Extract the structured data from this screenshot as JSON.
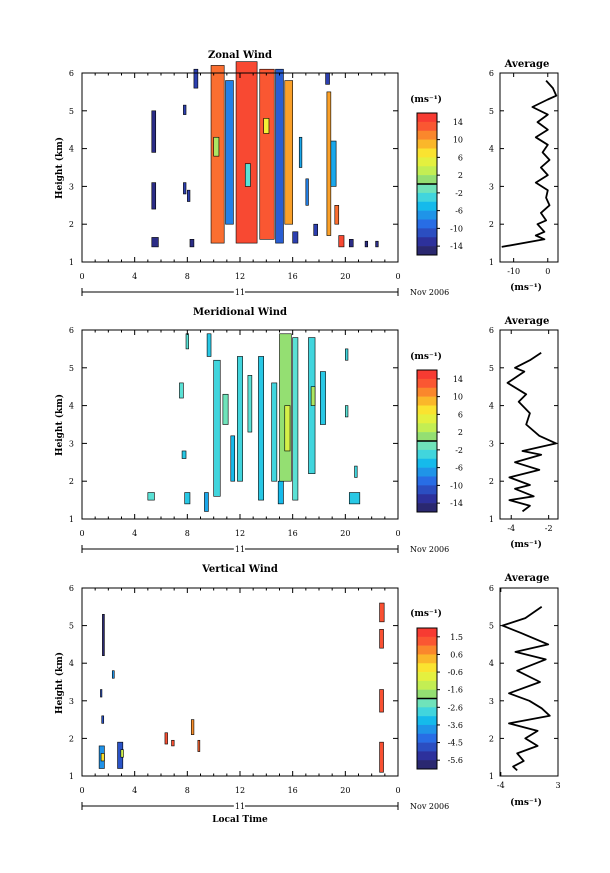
{
  "figure": {
    "time_axis_label": "Local Time",
    "date_label": "Nov 2006",
    "day_label": "11",
    "height_label": "Height (km)",
    "average_title": "Average"
  },
  "chart_data": [
    {
      "type": "heatmap",
      "title": "Zonal Wind",
      "xlabel": "Local Time",
      "ylabel": "Height (km)",
      "x_ticks": [
        "0",
        "4",
        "8",
        "12",
        "16",
        "20",
        "0"
      ],
      "y_ticks": [
        "1",
        "2",
        "3",
        "4",
        "5",
        "6"
      ],
      "xlim": [
        0,
        24
      ],
      "ylim": [
        1,
        6
      ],
      "colorbar": {
        "unit": "(ms⁻¹)",
        "ticks": [
          "14",
          "10",
          "6",
          "2",
          "-2",
          "-6",
          "-10",
          "-14"
        ],
        "range": [
          -16,
          16
        ]
      },
      "cells": [
        {
          "x": 5.3,
          "y": 3.9,
          "w": 0.3,
          "h": 1.1,
          "v": -14
        },
        {
          "x": 5.3,
          "y": 2.4,
          "w": 0.3,
          "h": 0.7,
          "v": -14
        },
        {
          "x": 5.3,
          "y": 1.4,
          "w": 0.5,
          "h": 0.25,
          "v": -14
        },
        {
          "x": 7.7,
          "y": 4.9,
          "w": 0.2,
          "h": 0.25,
          "v": -12
        },
        {
          "x": 7.7,
          "y": 2.8,
          "w": 0.2,
          "h": 0.3,
          "v": -12
        },
        {
          "x": 8.0,
          "y": 2.6,
          "w": 0.2,
          "h": 0.3,
          "v": -12
        },
        {
          "x": 8.2,
          "y": 1.4,
          "w": 0.3,
          "h": 0.2,
          "v": -14
        },
        {
          "x": 8.5,
          "y": 5.6,
          "w": 0.3,
          "h": 0.5,
          "v": -12
        },
        {
          "x": 9.8,
          "y": 1.5,
          "w": 1.0,
          "h": 4.7,
          "v": 12
        },
        {
          "x": 10.0,
          "y": 3.8,
          "w": 0.4,
          "h": 0.5,
          "v": 2
        },
        {
          "x": 10.9,
          "y": 2.0,
          "w": 0.6,
          "h": 3.8,
          "v": -8
        },
        {
          "x": 11.7,
          "y": 1.5,
          "w": 1.6,
          "h": 4.8,
          "v": 14
        },
        {
          "x": 12.4,
          "y": 3.0,
          "w": 0.4,
          "h": 0.6,
          "v": -2
        },
        {
          "x": 13.5,
          "y": 1.6,
          "w": 1.1,
          "h": 4.5,
          "v": 13
        },
        {
          "x": 13.8,
          "y": 4.4,
          "w": 0.4,
          "h": 0.4,
          "v": 6
        },
        {
          "x": 14.7,
          "y": 1.5,
          "w": 0.6,
          "h": 4.6,
          "v": -10
        },
        {
          "x": 15.4,
          "y": 2.0,
          "w": 0.6,
          "h": 3.8,
          "v": 10
        },
        {
          "x": 16.0,
          "y": 1.5,
          "w": 0.4,
          "h": 0.3,
          "v": -12
        },
        {
          "x": 16.5,
          "y": 3.5,
          "w": 0.2,
          "h": 0.8,
          "v": -6
        },
        {
          "x": 17.0,
          "y": 2.5,
          "w": 0.2,
          "h": 0.7,
          "v": -8
        },
        {
          "x": 17.6,
          "y": 1.7,
          "w": 0.3,
          "h": 0.3,
          "v": -12
        },
        {
          "x": 18.5,
          "y": 5.7,
          "w": 0.3,
          "h": 0.3,
          "v": -12
        },
        {
          "x": 18.6,
          "y": 1.7,
          "w": 0.3,
          "h": 3.8,
          "v": 10
        },
        {
          "x": 18.9,
          "y": 3.0,
          "w": 0.4,
          "h": 1.2,
          "v": -6
        },
        {
          "x": 19.2,
          "y": 2.0,
          "w": 0.3,
          "h": 0.5,
          "v": 12
        },
        {
          "x": 19.5,
          "y": 1.4,
          "w": 0.4,
          "h": 0.3,
          "v": 14
        },
        {
          "x": 20.3,
          "y": 1.4,
          "w": 0.3,
          "h": 0.2,
          "v": -14
        },
        {
          "x": 21.5,
          "y": 1.4,
          "w": 0.2,
          "h": 0.15,
          "v": -14
        },
        {
          "x": 22.3,
          "y": 1.4,
          "w": 0.2,
          "h": 0.15,
          "v": -14
        }
      ]
    },
    {
      "type": "line",
      "title": "Average",
      "xlabel": "(ms⁻¹)",
      "ylabel": "",
      "x_ticks": [
        "-10",
        "0"
      ],
      "x_tick_values": [
        -10,
        0
      ],
      "y_ticks": [
        "1",
        "2",
        "3",
        "4",
        "5",
        "6"
      ],
      "xlim": [
        -14,
        3
      ],
      "ylim": [
        1,
        6
      ],
      "x": [
        -0.5,
        1.5,
        2.5,
        0.0,
        -4.5,
        0.0,
        -3.0,
        0.0,
        -3.5,
        0.0,
        -1.5,
        0.5,
        -2.0,
        0.0,
        -3.5,
        0.0,
        -0.5,
        0.5,
        -2.0,
        -0.5,
        -3.0,
        -1.0,
        -3.5,
        -1.0,
        -13.5
      ],
      "y": [
        5.8,
        5.6,
        5.4,
        5.3,
        5.1,
        4.9,
        4.7,
        4.5,
        4.3,
        4.1,
        3.9,
        3.7,
        3.5,
        3.3,
        3.1,
        2.9,
        2.7,
        2.5,
        2.3,
        2.1,
        2.0,
        1.8,
        1.7,
        1.6,
        1.4
      ]
    },
    {
      "type": "heatmap",
      "title": "Meridional Wind",
      "xlabel": "Local Time",
      "ylabel": "Height (km)",
      "x_ticks": [
        "0",
        "4",
        "8",
        "12",
        "16",
        "20",
        "0"
      ],
      "y_ticks": [
        "1",
        "2",
        "3",
        "4",
        "5",
        "6"
      ],
      "xlim": [
        0,
        24
      ],
      "ylim": [
        1,
        6
      ],
      "colorbar": {
        "unit": "(ms⁻¹)",
        "ticks": [
          "14",
          "10",
          "6",
          "2",
          "-2",
          "-6",
          "-10",
          "-14"
        ],
        "range": [
          -16,
          16
        ]
      },
      "cells": [
        {
          "x": 5.0,
          "y": 1.5,
          "w": 0.5,
          "h": 0.2,
          "v": -2
        },
        {
          "x": 7.4,
          "y": 4.2,
          "w": 0.3,
          "h": 0.4,
          "v": -2
        },
        {
          "x": 7.6,
          "y": 2.6,
          "w": 0.3,
          "h": 0.2,
          "v": -4
        },
        {
          "x": 7.8,
          "y": 1.4,
          "w": 0.4,
          "h": 0.3,
          "v": -4
        },
        {
          "x": 7.9,
          "y": 5.5,
          "w": 0.2,
          "h": 0.4,
          "v": -2
        },
        {
          "x": 9.3,
          "y": 1.2,
          "w": 0.3,
          "h": 0.5,
          "v": -6
        },
        {
          "x": 9.5,
          "y": 5.3,
          "w": 0.3,
          "h": 0.6,
          "v": -4
        },
        {
          "x": 10.0,
          "y": 1.6,
          "w": 0.5,
          "h": 3.6,
          "v": -3
        },
        {
          "x": 10.7,
          "y": 3.5,
          "w": 0.4,
          "h": 0.8,
          "v": -1
        },
        {
          "x": 11.3,
          "y": 2.0,
          "w": 0.3,
          "h": 1.2,
          "v": -5
        },
        {
          "x": 11.8,
          "y": 2.0,
          "w": 0.4,
          "h": 3.3,
          "v": -3
        },
        {
          "x": 12.6,
          "y": 3.3,
          "w": 0.3,
          "h": 1.5,
          "v": -2
        },
        {
          "x": 13.4,
          "y": 1.5,
          "w": 0.4,
          "h": 3.8,
          "v": -4
        },
        {
          "x": 14.4,
          "y": 2.0,
          "w": 0.4,
          "h": 2.6,
          "v": -3
        },
        {
          "x": 14.9,
          "y": 1.4,
          "w": 0.4,
          "h": 0.6,
          "v": -5
        },
        {
          "x": 15.0,
          "y": 2.0,
          "w": 0.9,
          "h": 3.9,
          "v": 1
        },
        {
          "x": 15.4,
          "y": 2.8,
          "w": 0.4,
          "h": 1.2,
          "v": 4
        },
        {
          "x": 16.0,
          "y": 1.5,
          "w": 0.4,
          "h": 4.3,
          "v": -2
        },
        {
          "x": 17.2,
          "y": 2.2,
          "w": 0.5,
          "h": 3.6,
          "v": -3
        },
        {
          "x": 17.4,
          "y": 4.0,
          "w": 0.3,
          "h": 0.5,
          "v": 2
        },
        {
          "x": 18.1,
          "y": 3.5,
          "w": 0.4,
          "h": 1.4,
          "v": -4
        },
        {
          "x": 20.0,
          "y": 5.2,
          "w": 0.2,
          "h": 0.3,
          "v": -3
        },
        {
          "x": 20.0,
          "y": 3.7,
          "w": 0.2,
          "h": 0.3,
          "v": -2
        },
        {
          "x": 20.3,
          "y": 1.4,
          "w": 0.8,
          "h": 0.3,
          "v": -4
        },
        {
          "x": 20.7,
          "y": 2.1,
          "w": 0.2,
          "h": 0.3,
          "v": -3
        }
      ]
    },
    {
      "type": "line",
      "title": "Average",
      "xlabel": "(ms⁻¹)",
      "ylabel": "",
      "x_ticks": [
        "-4",
        "-2"
      ],
      "x_tick_values": [
        -4,
        -2
      ],
      "y_ticks": [
        "1",
        "2",
        "3",
        "4",
        "5",
        "6"
      ],
      "xlim": [
        -4.6,
        -1.5
      ],
      "ylim": [
        1,
        6
      ],
      "x": [
        -2.4,
        -3.0,
        -3.8,
        -3.3,
        -4.2,
        -3.2,
        -3.6,
        -3.0,
        -3.2,
        -2.5,
        -1.6,
        -3.4,
        -2.4,
        -3.8,
        -2.5,
        -4.1,
        -3.0,
        -3.8,
        -2.8,
        -4.1,
        -3.0,
        -3.4
      ],
      "y": [
        5.4,
        5.2,
        5.0,
        4.9,
        4.6,
        4.3,
        4.1,
        3.8,
        3.5,
        3.2,
        3.0,
        2.8,
        2.7,
        2.5,
        2.3,
        2.1,
        1.9,
        1.8,
        1.6,
        1.5,
        1.35,
        1.2
      ]
    },
    {
      "type": "heatmap",
      "title": "Vertical Wind",
      "xlabel": "Local Time",
      "ylabel": "Height (km)",
      "x_ticks": [
        "0",
        "4",
        "8",
        "12",
        "16",
        "20",
        "0"
      ],
      "y_ticks": [
        "1",
        "2",
        "3",
        "4",
        "5",
        "6"
      ],
      "xlim": [
        0,
        24
      ],
      "ylim": [
        1,
        6
      ],
      "colorbar": {
        "unit": "(ms⁻¹)",
        "ticks": [
          "1.5",
          "0.6",
          "-0.6",
          "-1.6",
          "-2.6",
          "-3.6",
          "-4.5",
          "-5.6"
        ],
        "range": [
          -6.5,
          2.5
        ]
      },
      "cells": [
        {
          "x": 1.55,
          "y": 4.2,
          "w": 0.15,
          "h": 1.1,
          "v": -6.2
        },
        {
          "x": 1.4,
          "y": 3.1,
          "w": 0.1,
          "h": 0.2,
          "v": -5
        },
        {
          "x": 1.5,
          "y": 2.4,
          "w": 0.15,
          "h": 0.2,
          "v": -5
        },
        {
          "x": 1.3,
          "y": 1.2,
          "w": 0.4,
          "h": 0.6,
          "v": -4
        },
        {
          "x": 1.45,
          "y": 1.4,
          "w": 0.25,
          "h": 0.2,
          "v": 0
        },
        {
          "x": 2.3,
          "y": 3.6,
          "w": 0.15,
          "h": 0.2,
          "v": -4
        },
        {
          "x": 2.7,
          "y": 1.2,
          "w": 0.4,
          "h": 0.7,
          "v": -5
        },
        {
          "x": 2.95,
          "y": 1.5,
          "w": 0.2,
          "h": 0.2,
          "v": -1
        },
        {
          "x": 6.3,
          "y": 1.85,
          "w": 0.2,
          "h": 0.3,
          "v": 1.8
        },
        {
          "x": 6.8,
          "y": 1.8,
          "w": 0.2,
          "h": 0.15,
          "v": 1.8
        },
        {
          "x": 8.3,
          "y": 2.1,
          "w": 0.2,
          "h": 0.4,
          "v": 1.0
        },
        {
          "x": 8.8,
          "y": 1.65,
          "w": 0.15,
          "h": 0.3,
          "v": 1.5
        },
        {
          "x": 22.6,
          "y": 5.1,
          "w": 0.35,
          "h": 0.5,
          "v": 1.8
        },
        {
          "x": 22.6,
          "y": 4.4,
          "w": 0.3,
          "h": 0.5,
          "v": 1.8
        },
        {
          "x": 22.6,
          "y": 2.7,
          "w": 0.3,
          "h": 0.6,
          "v": 1.8
        },
        {
          "x": 22.6,
          "y": 1.1,
          "w": 0.3,
          "h": 0.8,
          "v": 1.8
        }
      ]
    },
    {
      "type": "line",
      "title": "Average",
      "xlabel": "(ms⁻¹)",
      "ylabel": "",
      "x_ticks": [
        "-4",
        "3"
      ],
      "x_tick_values": [
        -4,
        3
      ],
      "y_ticks": [
        "1",
        "2",
        "3",
        "4",
        "5",
        "6"
      ],
      "xlim": [
        -4.1,
        3.0
      ],
      "ylim": [
        1,
        6
      ],
      "x": [
        1.0,
        -1.0,
        -3.8,
        -1.5,
        1.8,
        -2.2,
        1.5,
        -2.0,
        0.8,
        -3.0,
        -0.5,
        1.0,
        2.0,
        -3.0,
        0.5,
        -1.0,
        0.5,
        -2.0,
        -1.2,
        -2.5,
        -2.0
      ],
      "y": [
        5.5,
        5.2,
        5.0,
        4.8,
        4.5,
        4.3,
        4.1,
        3.8,
        3.5,
        3.2,
        3.0,
        2.8,
        2.6,
        2.4,
        2.2,
        2.0,
        1.8,
        1.6,
        1.4,
        1.25,
        1.15
      ]
    }
  ]
}
